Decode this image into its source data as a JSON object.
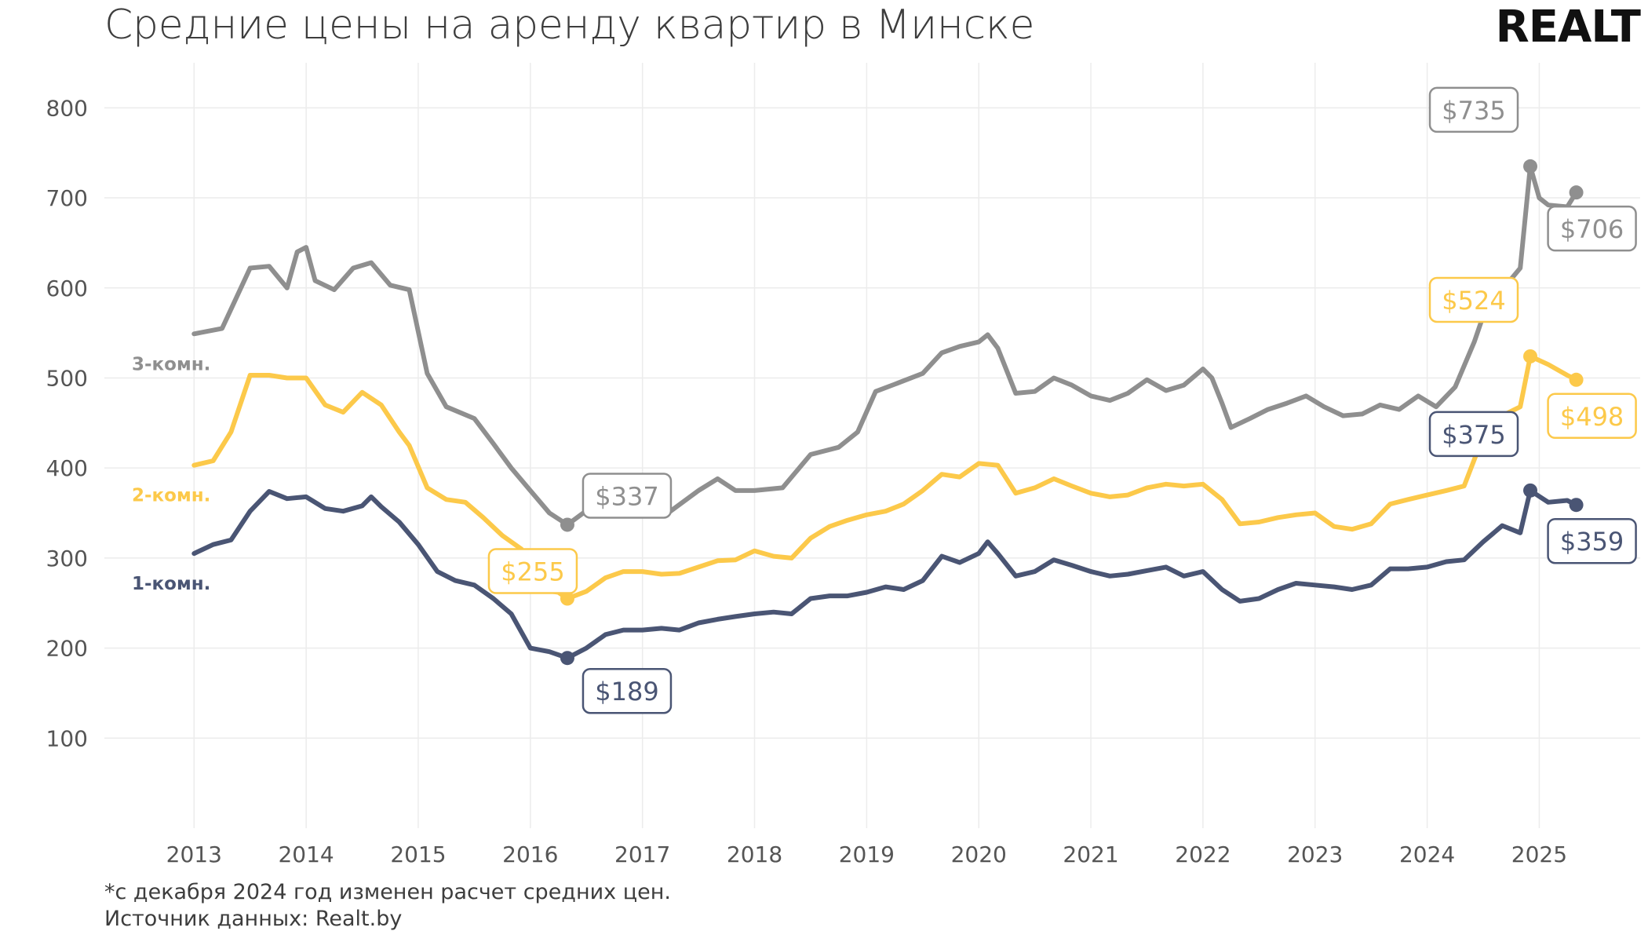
{
  "header": {
    "title": "Средние цены на аренду квартир в Минске",
    "logo_text": "REALT"
  },
  "footer": {
    "note": "*с декабря 2024 год изменен расчет средних цен.",
    "source": "Источник данных: Realt.by"
  },
  "chart_data": {
    "type": "line",
    "title": "Средние цены на аренду квартир в Минске",
    "xlabel": "",
    "ylabel": "",
    "xlim": [
      2012.2,
      2025.9
    ],
    "ylim": [
      0,
      850
    ],
    "x_ticks": [
      2013,
      2014,
      2015,
      2016,
      2017,
      2018,
      2019,
      2020,
      2021,
      2022,
      2023,
      2024,
      2025
    ],
    "y_ticks": [
      100,
      200,
      300,
      400,
      500,
      600,
      700,
      800
    ],
    "grid": true,
    "legend": "inline labels at left",
    "series": [
      {
        "name": "3-комн.",
        "color": "#8f8f8f",
        "points": [
          [
            2013.0,
            549
          ],
          [
            2013.25,
            555
          ],
          [
            2013.5,
            622
          ],
          [
            2013.67,
            624
          ],
          [
            2013.83,
            600
          ],
          [
            2013.92,
            640
          ],
          [
            2014.0,
            645
          ],
          [
            2014.08,
            608
          ],
          [
            2014.25,
            598
          ],
          [
            2014.42,
            622
          ],
          [
            2014.58,
            628
          ],
          [
            2014.75,
            603
          ],
          [
            2014.92,
            598
          ],
          [
            2015.08,
            505
          ],
          [
            2015.25,
            468
          ],
          [
            2015.5,
            455
          ],
          [
            2015.67,
            427
          ],
          [
            2015.83,
            400
          ],
          [
            2016.0,
            375
          ],
          [
            2016.17,
            350
          ],
          [
            2016.33,
            337
          ],
          [
            2016.58,
            360
          ],
          [
            2016.83,
            355
          ],
          [
            2017.0,
            348
          ],
          [
            2017.25,
            352
          ],
          [
            2017.5,
            375
          ],
          [
            2017.67,
            388
          ],
          [
            2017.83,
            375
          ],
          [
            2018.0,
            375
          ],
          [
            2018.25,
            378
          ],
          [
            2018.5,
            415
          ],
          [
            2018.75,
            423
          ],
          [
            2018.92,
            440
          ],
          [
            2019.08,
            485
          ],
          [
            2019.25,
            493
          ],
          [
            2019.5,
            505
          ],
          [
            2019.67,
            528
          ],
          [
            2019.83,
            535
          ],
          [
            2020.0,
            540
          ],
          [
            2020.08,
            548
          ],
          [
            2020.17,
            533
          ],
          [
            2020.33,
            483
          ],
          [
            2020.5,
            485
          ],
          [
            2020.67,
            500
          ],
          [
            2020.83,
            492
          ],
          [
            2021.0,
            480
          ],
          [
            2021.17,
            475
          ],
          [
            2021.33,
            483
          ],
          [
            2021.5,
            498
          ],
          [
            2021.67,
            486
          ],
          [
            2021.83,
            492
          ],
          [
            2022.0,
            510
          ],
          [
            2022.08,
            500
          ],
          [
            2022.17,
            472
          ],
          [
            2022.25,
            445
          ],
          [
            2022.42,
            455
          ],
          [
            2022.58,
            465
          ],
          [
            2022.75,
            472
          ],
          [
            2022.92,
            480
          ],
          [
            2023.08,
            468
          ],
          [
            2023.25,
            458
          ],
          [
            2023.42,
            460
          ],
          [
            2023.58,
            470
          ],
          [
            2023.75,
            465
          ],
          [
            2023.92,
            480
          ],
          [
            2024.08,
            468
          ],
          [
            2024.25,
            490
          ],
          [
            2024.42,
            540
          ],
          [
            2024.58,
            598
          ],
          [
            2024.75,
            610
          ],
          [
            2024.83,
            622
          ],
          [
            2024.92,
            735
          ],
          [
            2025.0,
            700
          ],
          [
            2025.08,
            692
          ],
          [
            2025.25,
            690
          ],
          [
            2025.33,
            706
          ]
        ]
      },
      {
        "name": "2-комн.",
        "color": "#fcc94a",
        "points": [
          [
            2013.0,
            403
          ],
          [
            2013.17,
            408
          ],
          [
            2013.33,
            440
          ],
          [
            2013.5,
            503
          ],
          [
            2013.67,
            503
          ],
          [
            2013.83,
            500
          ],
          [
            2014.0,
            500
          ],
          [
            2014.17,
            470
          ],
          [
            2014.33,
            462
          ],
          [
            2014.5,
            484
          ],
          [
            2014.67,
            470
          ],
          [
            2014.83,
            440
          ],
          [
            2014.92,
            425
          ],
          [
            2015.08,
            378
          ],
          [
            2015.25,
            365
          ],
          [
            2015.42,
            362
          ],
          [
            2015.58,
            345
          ],
          [
            2015.75,
            325
          ],
          [
            2015.92,
            310
          ],
          [
            2016.08,
            265
          ],
          [
            2016.25,
            262
          ],
          [
            2016.33,
            255
          ],
          [
            2016.5,
            263
          ],
          [
            2016.67,
            278
          ],
          [
            2016.83,
            285
          ],
          [
            2017.0,
            285
          ],
          [
            2017.17,
            282
          ],
          [
            2017.33,
            283
          ],
          [
            2017.5,
            290
          ],
          [
            2017.67,
            297
          ],
          [
            2017.83,
            298
          ],
          [
            2018.0,
            308
          ],
          [
            2018.17,
            302
          ],
          [
            2018.33,
            300
          ],
          [
            2018.5,
            322
          ],
          [
            2018.67,
            335
          ],
          [
            2018.83,
            342
          ],
          [
            2019.0,
            348
          ],
          [
            2019.17,
            352
          ],
          [
            2019.33,
            360
          ],
          [
            2019.5,
            375
          ],
          [
            2019.67,
            393
          ],
          [
            2019.83,
            390
          ],
          [
            2020.0,
            405
          ],
          [
            2020.17,
            403
          ],
          [
            2020.33,
            372
          ],
          [
            2020.5,
            378
          ],
          [
            2020.67,
            388
          ],
          [
            2020.83,
            380
          ],
          [
            2021.0,
            372
          ],
          [
            2021.17,
            368
          ],
          [
            2021.33,
            370
          ],
          [
            2021.5,
            378
          ],
          [
            2021.67,
            382
          ],
          [
            2021.83,
            380
          ],
          [
            2022.0,
            382
          ],
          [
            2022.17,
            365
          ],
          [
            2022.33,
            338
          ],
          [
            2022.5,
            340
          ],
          [
            2022.67,
            345
          ],
          [
            2022.83,
            348
          ],
          [
            2023.0,
            350
          ],
          [
            2023.17,
            335
          ],
          [
            2023.33,
            332
          ],
          [
            2023.5,
            338
          ],
          [
            2023.67,
            360
          ],
          [
            2023.83,
            365
          ],
          [
            2024.0,
            370
          ],
          [
            2024.17,
            375
          ],
          [
            2024.33,
            380
          ],
          [
            2024.5,
            435
          ],
          [
            2024.67,
            458
          ],
          [
            2024.83,
            468
          ],
          [
            2024.92,
            524
          ],
          [
            2025.08,
            515
          ],
          [
            2025.25,
            503
          ],
          [
            2025.33,
            498
          ]
        ]
      },
      {
        "name": "1-комн.",
        "color": "#4a5574",
        "points": [
          [
            2013.0,
            305
          ],
          [
            2013.17,
            315
          ],
          [
            2013.33,
            320
          ],
          [
            2013.5,
            352
          ],
          [
            2013.67,
            374
          ],
          [
            2013.83,
            366
          ],
          [
            2014.0,
            368
          ],
          [
            2014.17,
            355
          ],
          [
            2014.33,
            352
          ],
          [
            2014.5,
            358
          ],
          [
            2014.58,
            368
          ],
          [
            2014.67,
            357
          ],
          [
            2014.83,
            340
          ],
          [
            2015.0,
            315
          ],
          [
            2015.17,
            285
          ],
          [
            2015.33,
            275
          ],
          [
            2015.5,
            270
          ],
          [
            2015.67,
            255
          ],
          [
            2015.83,
            238
          ],
          [
            2016.0,
            200
          ],
          [
            2016.17,
            196
          ],
          [
            2016.33,
            189
          ],
          [
            2016.5,
            200
          ],
          [
            2016.67,
            215
          ],
          [
            2016.83,
            220
          ],
          [
            2017.0,
            220
          ],
          [
            2017.17,
            222
          ],
          [
            2017.33,
            220
          ],
          [
            2017.5,
            228
          ],
          [
            2017.67,
            232
          ],
          [
            2017.83,
            235
          ],
          [
            2018.0,
            238
          ],
          [
            2018.17,
            240
          ],
          [
            2018.33,
            238
          ],
          [
            2018.5,
            255
          ],
          [
            2018.67,
            258
          ],
          [
            2018.83,
            258
          ],
          [
            2019.0,
            262
          ],
          [
            2019.17,
            268
          ],
          [
            2019.33,
            265
          ],
          [
            2019.5,
            275
          ],
          [
            2019.67,
            302
          ],
          [
            2019.83,
            295
          ],
          [
            2020.0,
            305
          ],
          [
            2020.08,
            318
          ],
          [
            2020.17,
            305
          ],
          [
            2020.33,
            280
          ],
          [
            2020.5,
            285
          ],
          [
            2020.67,
            298
          ],
          [
            2020.83,
            292
          ],
          [
            2021.0,
            285
          ],
          [
            2021.17,
            280
          ],
          [
            2021.33,
            282
          ],
          [
            2021.5,
            286
          ],
          [
            2021.67,
            290
          ],
          [
            2021.83,
            280
          ],
          [
            2022.0,
            285
          ],
          [
            2022.17,
            265
          ],
          [
            2022.33,
            252
          ],
          [
            2022.5,
            255
          ],
          [
            2022.67,
            265
          ],
          [
            2022.83,
            272
          ],
          [
            2023.0,
            270
          ],
          [
            2023.17,
            268
          ],
          [
            2023.33,
            265
          ],
          [
            2023.5,
            270
          ],
          [
            2023.67,
            288
          ],
          [
            2023.83,
            288
          ],
          [
            2024.0,
            290
          ],
          [
            2024.17,
            296
          ],
          [
            2024.33,
            298
          ],
          [
            2024.5,
            318
          ],
          [
            2024.67,
            336
          ],
          [
            2024.83,
            328
          ],
          [
            2024.92,
            375
          ],
          [
            2025.08,
            362
          ],
          [
            2025.25,
            364
          ],
          [
            2025.33,
            359
          ]
        ]
      }
    ],
    "callouts": [
      {
        "series": 0,
        "x": 2016.33,
        "y": 337,
        "text": "$337",
        "pos": "above-right"
      },
      {
        "series": 0,
        "x": 2024.92,
        "y": 735,
        "text": "$735",
        "pos": "above-left"
      },
      {
        "series": 0,
        "x": 2025.33,
        "y": 706,
        "text": "$706",
        "pos": "below"
      },
      {
        "series": 1,
        "x": 2016.33,
        "y": 255,
        "text": "$255",
        "pos": "left"
      },
      {
        "series": 1,
        "x": 2024.92,
        "y": 524,
        "text": "$524",
        "pos": "above-left"
      },
      {
        "series": 1,
        "x": 2025.33,
        "y": 498,
        "text": "$498",
        "pos": "below"
      },
      {
        "series": 2,
        "x": 2016.33,
        "y": 189,
        "text": "$189",
        "pos": "below-right"
      },
      {
        "series": 2,
        "x": 2024.92,
        "y": 375,
        "text": "$375",
        "pos": "above-left"
      },
      {
        "series": 2,
        "x": 2025.33,
        "y": 359,
        "text": "$359",
        "pos": "below"
      }
    ]
  }
}
